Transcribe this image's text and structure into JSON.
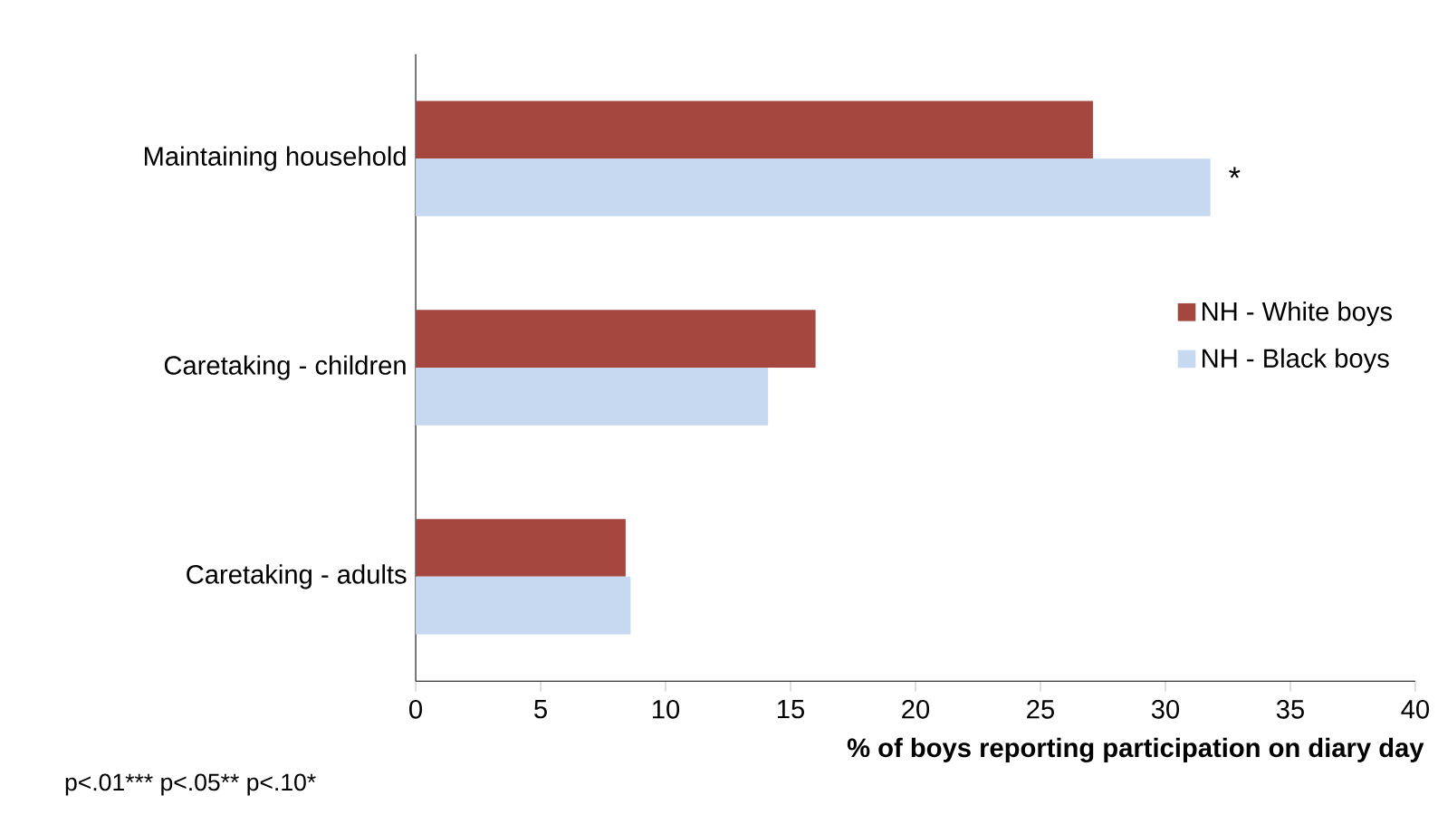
{
  "chart_data": {
    "type": "bar",
    "orientation": "horizontal",
    "categories": [
      "Maintaining household",
      "Caretaking - children",
      "Caretaking - adults"
    ],
    "series": [
      {
        "name": "NH - White boys",
        "color": "#a5463f",
        "values": [
          27.1,
          16.0,
          8.4
        ]
      },
      {
        "name": "NH - Black boys",
        "color": "#c6d9f1",
        "values": [
          31.8,
          14.1,
          8.6
        ]
      }
    ],
    "xlim": [
      0,
      40
    ],
    "xticks": [
      0,
      5,
      10,
      15,
      20,
      25,
      30,
      35,
      40
    ],
    "xlabel": "% of boys reporting participation on diary day",
    "legend": "right",
    "annotations": [
      {
        "text": "*",
        "x": 31.8,
        "y": "Maintaining household"
      },
      "p<.01***",
      "p<.05**",
      "p<.10*"
    ]
  }
}
